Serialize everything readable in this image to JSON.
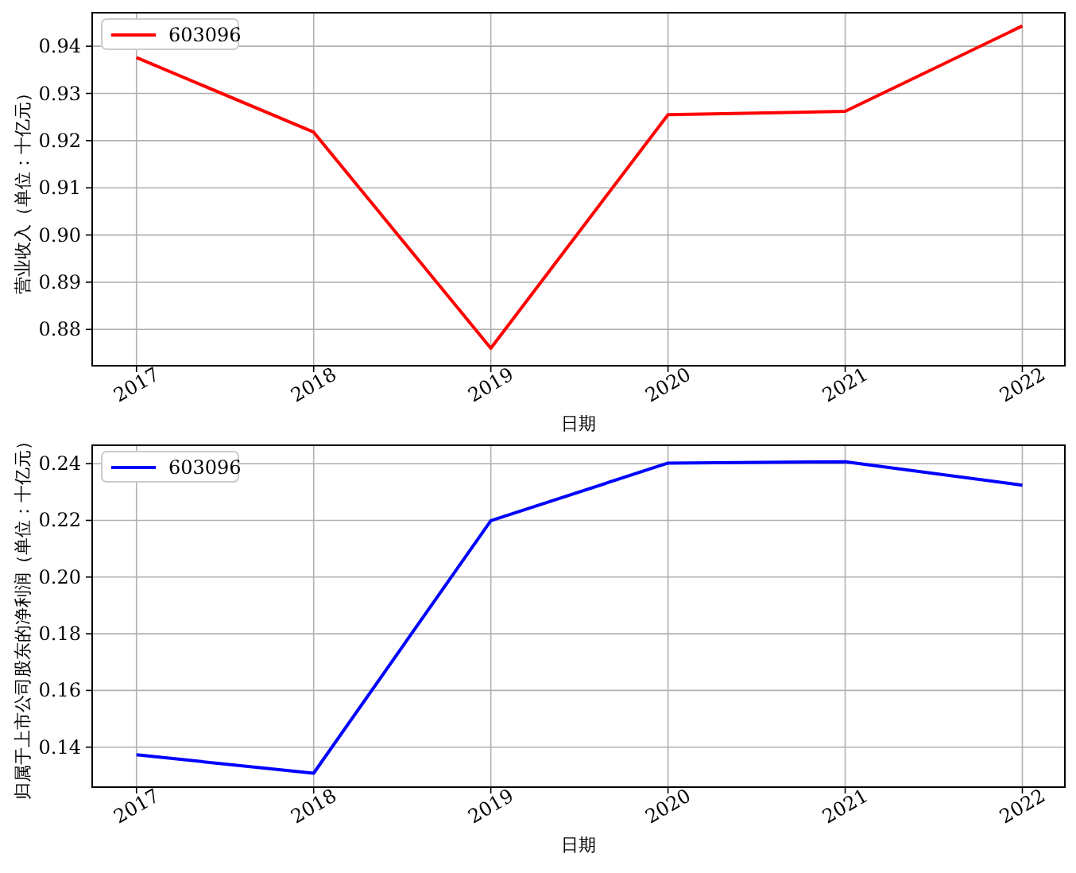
{
  "chart_data": [
    {
      "type": "line",
      "xlabel": "日期",
      "ylabel": "营业收入（单位：十亿元）",
      "x": [
        2017,
        2018,
        2019,
        2020,
        2021,
        2022
      ],
      "xlim": [
        2016.75,
        2022.24
      ],
      "xticks": [
        2017,
        2018,
        2019,
        2020,
        2021,
        2022
      ],
      "ylim": [
        0.8723,
        0.9471
      ],
      "yticks": [
        {
          "value": 0.88,
          "label": "0.88"
        },
        {
          "value": 0.89,
          "label": "0.89"
        },
        {
          "value": 0.9,
          "label": "0.90"
        },
        {
          "value": 0.91,
          "label": "0.91"
        },
        {
          "value": 0.92,
          "label": "0.92"
        },
        {
          "value": 0.93,
          "label": "0.93"
        },
        {
          "value": 0.94,
          "label": "0.94"
        }
      ],
      "grid": true,
      "legend": "top left",
      "series": [
        {
          "name": "603096",
          "color": "#ff0000",
          "values": [
            0.9376,
            0.9218,
            0.876,
            0.9255,
            0.9262,
            0.9443
          ]
        }
      ]
    },
    {
      "type": "line",
      "xlabel": "日期",
      "ylabel": "归属于上市公司股东的净利润（单位：十亿元）",
      "x": [
        2017,
        2018,
        2019,
        2020,
        2021,
        2022
      ],
      "xlim": [
        2016.75,
        2022.24
      ],
      "xticks": [
        2017,
        2018,
        2019,
        2020,
        2021,
        2022
      ],
      "ylim": [
        0.1259,
        0.2465
      ],
      "yticks": [
        {
          "value": 0.14,
          "label": "0.14"
        },
        {
          "value": 0.16,
          "label": "0.16"
        },
        {
          "value": 0.18,
          "label": "0.18"
        },
        {
          "value": 0.2,
          "label": "0.20"
        },
        {
          "value": 0.22,
          "label": "0.22"
        },
        {
          "value": 0.24,
          "label": "0.24"
        }
      ],
      "grid": true,
      "legend": "top left",
      "series": [
        {
          "name": "603096",
          "color": "#0000ff",
          "values": [
            0.1373,
            0.1308,
            0.2199,
            0.2402,
            0.2407,
            0.2324
          ]
        }
      ]
    }
  ]
}
